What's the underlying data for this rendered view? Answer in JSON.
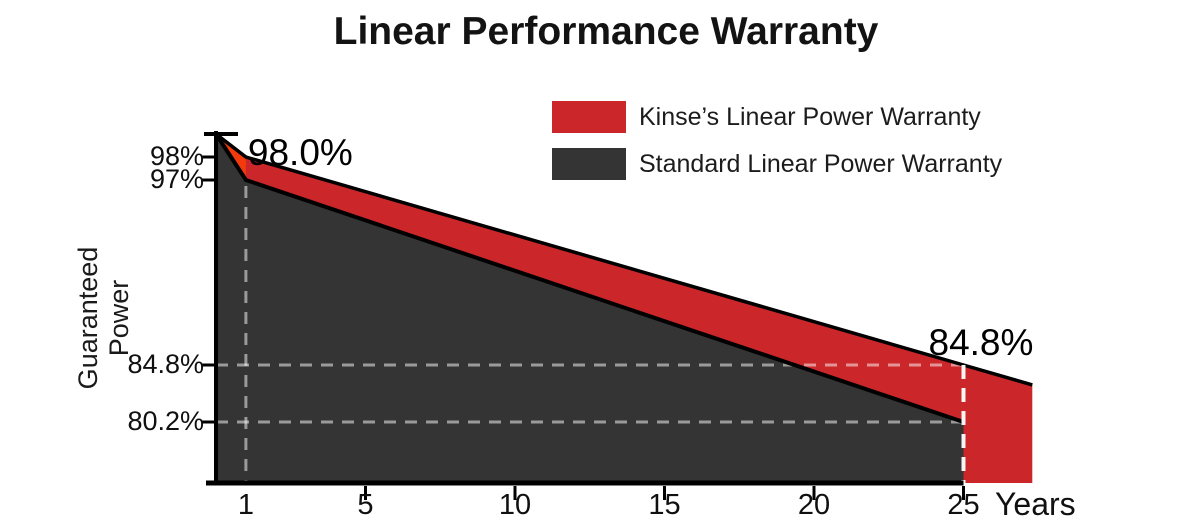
{
  "title": "Linear Performance Warranty",
  "colors": {
    "kinse_red": "#cb2629",
    "kinse_wedge_orange": "#f23a0c",
    "standard_dark": "#343434",
    "axis_black": "#000000",
    "gridline_dash": "rgba(255,255,255,0.5)",
    "year25_dash": "#ffffff"
  },
  "legend": {
    "items": [
      {
        "label": "Kinse’s Linear Power Warranty",
        "color": "#cb2629"
      },
      {
        "label": "Standard Linear Power Warranty",
        "color": "#343434"
      }
    ]
  },
  "chart_data": {
    "type": "area",
    "title": "Linear Performance Warranty",
    "xlabel": "Years",
    "ylabel": "Guaranteed Power",
    "x_ticks": [
      1,
      5,
      10,
      15,
      20,
      25
    ],
    "x_ticks_with_marks": [
      5,
      10,
      15,
      20,
      25
    ],
    "y_ticks": [
      {
        "value": 98,
        "label": "98%"
      },
      {
        "value": 97,
        "label": "97%"
      },
      {
        "value": 84.8,
        "label": "84.8%"
      },
      {
        "value": 80.2,
        "label": "80.2%"
      }
    ],
    "series": [
      {
        "name": "Kinse's Linear Power Warranty",
        "color": "#cb2629",
        "points": [
          [
            0,
            100
          ],
          [
            1,
            98
          ],
          [
            25,
            84.8
          ]
        ],
        "extends_beyond_last_year": 2.3
      },
      {
        "name": "Standard Linear Power Warranty",
        "color": "#343434",
        "points": [
          [
            0,
            100
          ],
          [
            1,
            97
          ],
          [
            25,
            80.2
          ]
        ]
      }
    ],
    "annotations": [
      {
        "text": "98.0%",
        "year": 1,
        "value": 98
      },
      {
        "text": "84.8%",
        "year": 25,
        "value": 84.8
      }
    ],
    "gridlines": {
      "horizontal_at": [
        84.8,
        80.2
      ],
      "vertical_dashed_year": 1,
      "end_marker_year": 25,
      "style": "dashed"
    },
    "ylim_shown": [
      80.2,
      100
    ],
    "legend_position": "top-right",
    "grid": true
  }
}
